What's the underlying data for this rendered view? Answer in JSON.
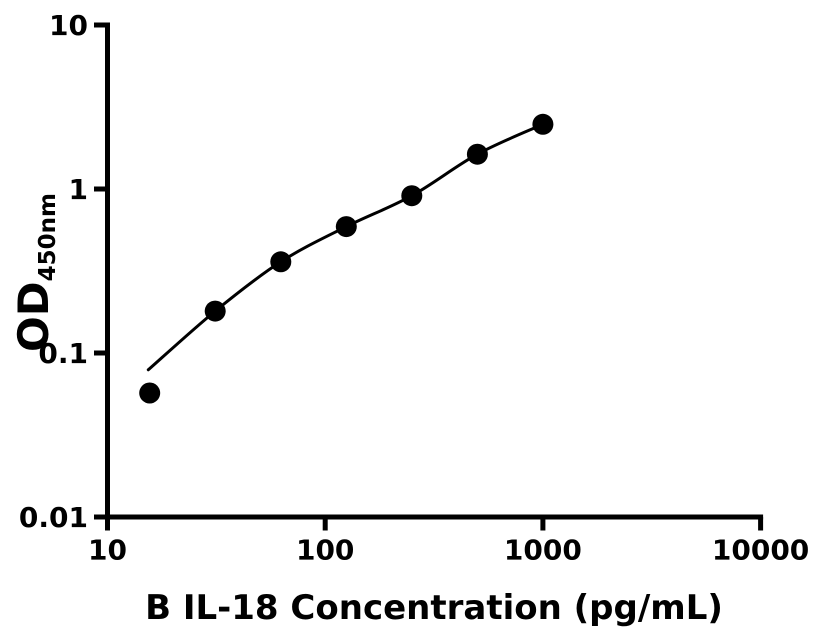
{
  "figure": {
    "background": "#ffffff"
  },
  "chart_data": {
    "type": "scatter",
    "title": "",
    "xlabel": "B IL-18 Concentration (pg/mL)",
    "ylabel_main": "OD",
    "ylabel_sub": "450nm",
    "x_scale": "log",
    "y_scale": "log",
    "xlim": [
      10,
      10000
    ],
    "ylim": [
      0.01,
      10
    ],
    "x_ticks": [
      10,
      100,
      1000,
      10000
    ],
    "x_tick_labels": [
      "10",
      "100",
      "1000",
      "10000"
    ],
    "y_ticks": [
      10,
      1,
      0.1,
      0.01
    ],
    "y_tick_labels": [
      "10",
      "1",
      "0.1",
      "0.01"
    ],
    "grid": false,
    "legend": false,
    "axis_color": "#000000",
    "marker_color": "#000000",
    "line_color": "#000000",
    "series": [
      {
        "name": "standard-points",
        "type": "scatter",
        "x": [
          15.625,
          31.25,
          62.5,
          125,
          250,
          500,
          1000
        ],
        "y": [
          0.057,
          0.18,
          0.36,
          0.59,
          0.91,
          1.63,
          2.48
        ]
      },
      {
        "name": "fit-curve",
        "type": "line",
        "x": [
          15.4,
          31.25,
          62.5,
          125,
          250,
          500,
          1000
        ],
        "y": [
          0.079,
          0.18,
          0.36,
          0.59,
          0.91,
          1.63,
          2.48
        ]
      }
    ]
  }
}
